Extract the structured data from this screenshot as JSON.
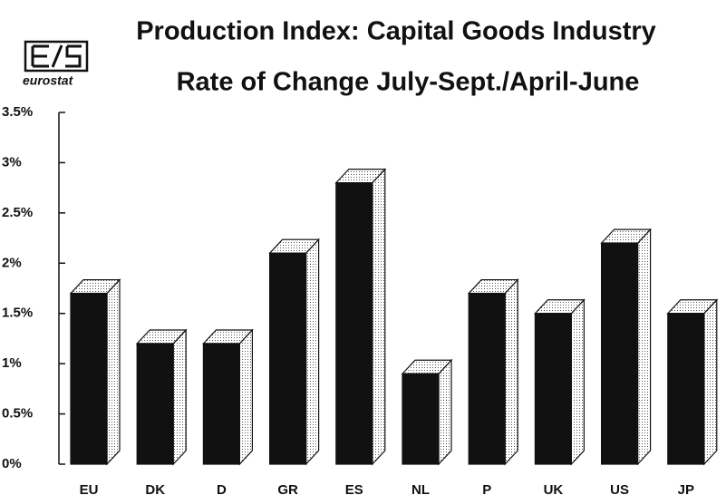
{
  "chart_data": {
    "type": "bar3d",
    "title": "Production Index: Capital Goods Industry",
    "subtitle": "Rate of Change July-Sept./April-June",
    "logo_text": "eurostat",
    "categories": [
      "EU",
      "DK",
      "D",
      "GR",
      "ES",
      "NL",
      "P",
      "UK",
      "US",
      "JP"
    ],
    "values": [
      1.7,
      1.2,
      1.2,
      2.1,
      2.8,
      0.9,
      1.7,
      1.5,
      2.2,
      1.5
    ],
    "color": "#111111",
    "top_color": "#d8d8d8",
    "side_color": "#eeeeee",
    "ylim": [
      0,
      3.5
    ],
    "yticks": [
      {
        "value": 0,
        "label": "0%"
      },
      {
        "value": 0.5,
        "label": "0.5%"
      },
      {
        "value": 1,
        "label": "1%"
      },
      {
        "value": 1.5,
        "label": "1.5%"
      },
      {
        "value": 2,
        "label": "2%"
      },
      {
        "value": 2.5,
        "label": "2.5%"
      },
      {
        "value": 3,
        "label": "3%"
      },
      {
        "value": 3.5,
        "label": "3.5%"
      }
    ],
    "grid": false
  }
}
